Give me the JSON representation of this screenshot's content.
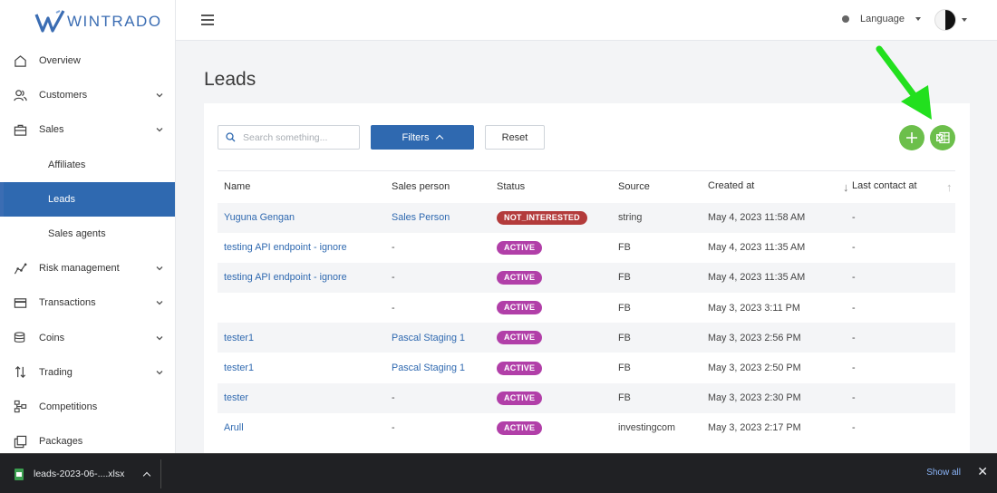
{
  "brand": {
    "name": "WINTRADO",
    "color": "#3b6db3"
  },
  "sidebar": {
    "items": [
      {
        "label": "Overview",
        "icon": "home-icon",
        "has_chevron": false
      },
      {
        "label": "Customers",
        "icon": "users-icon",
        "has_chevron": true
      },
      {
        "label": "Sales",
        "icon": "briefcase-icon",
        "has_chevron": true
      },
      {
        "label": "Affiliates",
        "sub": true
      },
      {
        "label": "Leads",
        "sub": true,
        "active": true
      },
      {
        "label": "Sales agents",
        "sub": true
      },
      {
        "label": "Risk management",
        "icon": "chart-line-icon",
        "has_chevron": true
      },
      {
        "label": "Transactions",
        "icon": "credit-card-icon",
        "has_chevron": true
      },
      {
        "label": "Coins",
        "icon": "coins-icon",
        "has_chevron": true
      },
      {
        "label": "Trading",
        "icon": "arrows-updown-icon",
        "has_chevron": true
      },
      {
        "label": "Competitions",
        "icon": "sitemap-icon",
        "has_chevron": false
      },
      {
        "label": "Packages",
        "icon": "copy-icon",
        "has_chevron": false
      }
    ]
  },
  "topbar": {
    "language_label": "Language"
  },
  "main": {
    "title": "Leads",
    "search_placeholder": "Search something...",
    "filters_label": "Filters",
    "reset_label": "Reset"
  },
  "table": {
    "columns": [
      "Name",
      "Sales person",
      "Status",
      "Source",
      "Created at",
      "Last contact at"
    ],
    "rows": [
      {
        "name": "Yuguna Gengan",
        "sales_person": "Sales Person",
        "status": "NOT_INTERESTED",
        "source": "string",
        "created_at": "May 4, 2023 11:58 AM",
        "last_contact": "-"
      },
      {
        "name": "testing API endpoint - ignore",
        "sales_person": "-",
        "status": "ACTIVE",
        "source": "FB",
        "created_at": "May 4, 2023 11:35 AM",
        "last_contact": "-"
      },
      {
        "name": "testing API endpoint - ignore",
        "sales_person": "-",
        "status": "ACTIVE",
        "source": "FB",
        "created_at": "May 4, 2023 11:35 AM",
        "last_contact": "-"
      },
      {
        "name": "",
        "sales_person": "-",
        "status": "ACTIVE",
        "source": "FB",
        "created_at": "May 3, 2023 3:11 PM",
        "last_contact": "-"
      },
      {
        "name": "tester1",
        "sales_person": "Pascal Staging 1",
        "status": "ACTIVE",
        "source": "FB",
        "created_at": "May 3, 2023 2:56 PM",
        "last_contact": "-"
      },
      {
        "name": "tester1",
        "sales_person": "Pascal Staging 1",
        "status": "ACTIVE",
        "source": "FB",
        "created_at": "May 3, 2023 2:50 PM",
        "last_contact": "-"
      },
      {
        "name": "tester",
        "sales_person": "-",
        "status": "ACTIVE",
        "source": "FB",
        "created_at": "May 3, 2023 2:30 PM",
        "last_contact": "-"
      },
      {
        "name": "Arull",
        "sales_person": "-",
        "status": "ACTIVE",
        "source": "investingcom",
        "created_at": "May 3, 2023 2:17 PM",
        "last_contact": "-"
      }
    ]
  },
  "colors": {
    "primary": "#2f69b0",
    "green": "#6cbf4b",
    "active_badge": "#b13fa8",
    "not_interested_badge": "#b33b3b",
    "annotation_arrow": "#22e01e"
  },
  "download_bar": {
    "file_name": "leads-2023-06-....xlsx",
    "show_all": "Show all",
    "close": "✕"
  }
}
